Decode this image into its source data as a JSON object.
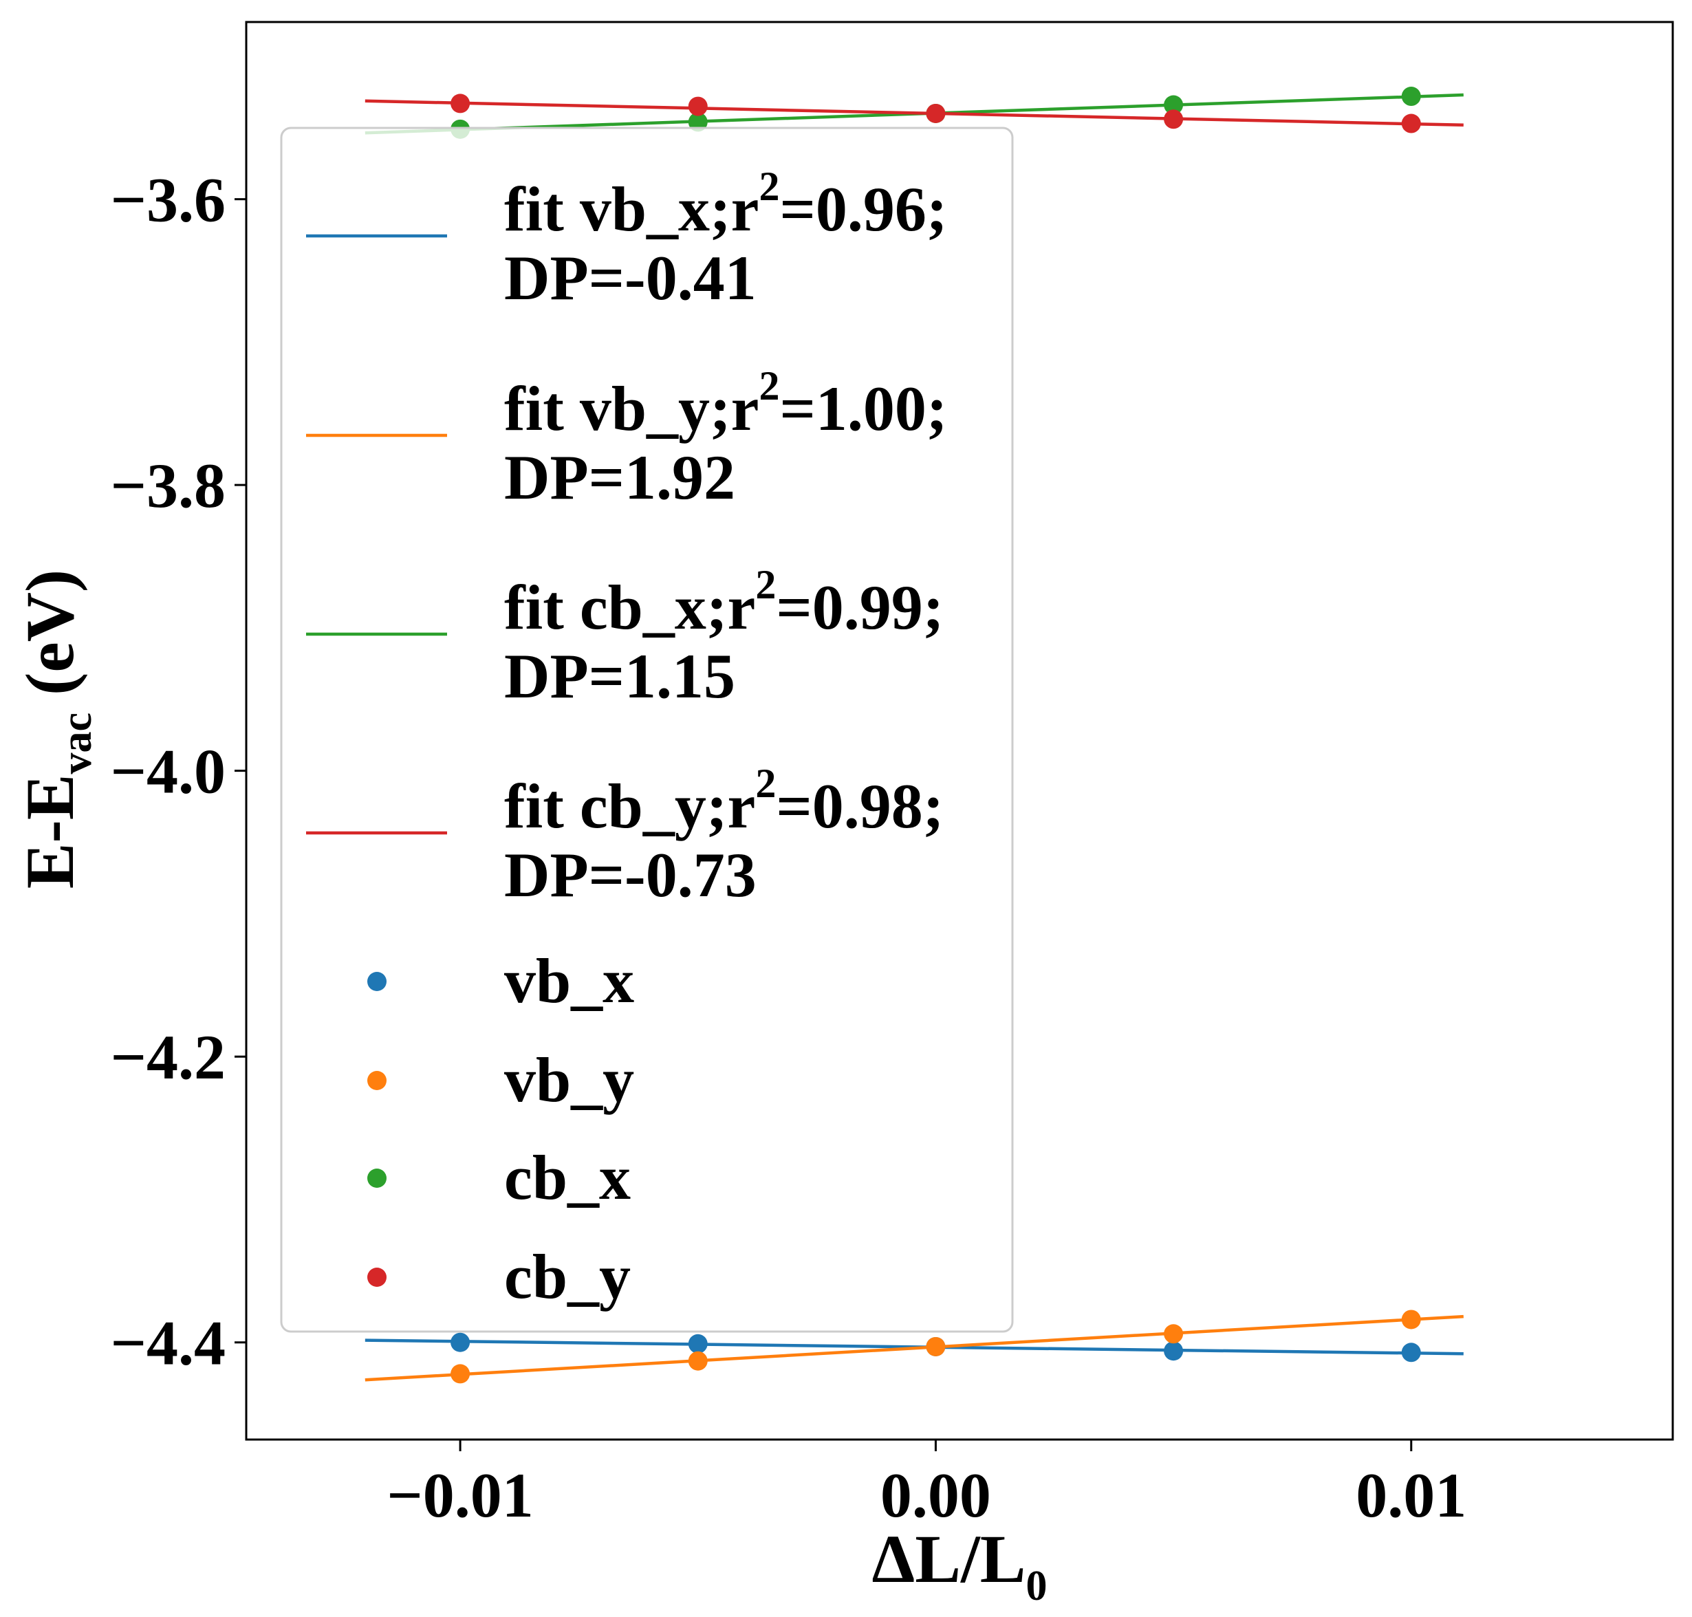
{
  "chart_data": {
    "type": "scatter",
    "title": "",
    "xlabel": {
      "main": "ΔL/L",
      "sub": "0"
    },
    "ylabel": {
      "main": "E-E",
      "sub": "vac",
      "suffix": " (eV)"
    },
    "xlim": [
      -0.0145,
      0.0155
    ],
    "ylim": [
      -4.468,
      -3.476
    ],
    "x_ticks": [
      -0.01,
      0.0,
      0.01
    ],
    "x_tick_labels": [
      "−0.01",
      "0.00",
      "0.01"
    ],
    "y_ticks": [
      -3.6,
      -3.8,
      -4.0,
      -4.2,
      -4.4
    ],
    "y_tick_labels": [
      "−3.6",
      "−3.8",
      "−4.0",
      "−4.2",
      "−4.4"
    ],
    "grid": false,
    "legend_position": "upper-left",
    "fit_x_range": [
      -0.012,
      0.0111
    ],
    "series": [
      {
        "name": "vb_x",
        "color": "#1f77b4",
        "x": [
          -0.01,
          -0.005,
          0.0,
          0.005,
          0.01
        ],
        "y": [
          -4.4,
          -4.401,
          -4.403,
          -4.406,
          -4.407
        ],
        "fit": {
          "slope": -0.41,
          "intercept": -4.4034,
          "label_line1": "fit vb_x;r",
          "r2_sup": "2",
          "label_r2_value": "=0.96;",
          "label_line2": "DP=-0.41"
        }
      },
      {
        "name": "vb_y",
        "color": "#ff7f0e",
        "x": [
          -0.01,
          -0.005,
          0.0,
          0.005,
          0.01
        ],
        "y": [
          -4.422,
          -4.413,
          -4.403,
          -4.394,
          -4.384
        ],
        "fit": {
          "slope": 1.92,
          "intercept": -4.4032,
          "label_line1": "fit vb_y;r",
          "r2_sup": "2",
          "label_r2_value": "=1.00;",
          "label_line2": "DP=1.92"
        }
      },
      {
        "name": "cb_x",
        "color": "#2ca02c",
        "x": [
          -0.01,
          -0.005,
          0.0,
          0.005,
          0.01
        ],
        "y": [
          -3.551,
          -3.546,
          -3.54,
          -3.534,
          -3.528
        ],
        "fit": {
          "slope": 1.15,
          "intercept": -3.5398,
          "label_line1": "fit cb_x;r",
          "r2_sup": "2",
          "label_r2_value": "=0.99;",
          "label_line2": "DP=1.15"
        }
      },
      {
        "name": "cb_y",
        "color": "#d62728",
        "x": [
          -0.01,
          -0.005,
          0.0,
          0.005,
          0.01
        ],
        "y": [
          -3.533,
          -3.535,
          -3.54,
          -3.544,
          -3.547
        ],
        "fit": {
          "slope": -0.73,
          "intercept": -3.54,
          "label_line1": "fit cb_y;r",
          "r2_sup": "2",
          "label_r2_value": "=0.98;",
          "label_line2": "DP=-0.73"
        }
      }
    ]
  }
}
